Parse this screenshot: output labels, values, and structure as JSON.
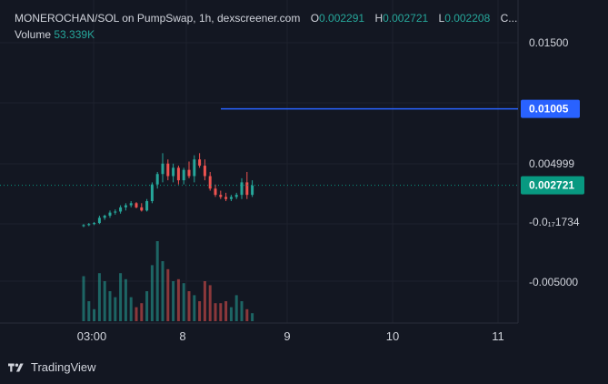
{
  "legend": {
    "symbol": "MONEROCHAN/SOL on PumpSwap, 1h, dexscreener.com",
    "o_label": "O",
    "o_value": "0.002291",
    "h_label": "H",
    "h_value": "0.002721",
    "l_label": "L",
    "l_value": "0.002208",
    "c_label": "C...",
    "volume_label": "Volume",
    "volume_value": "53.339K"
  },
  "price_axis": {
    "labels": [
      "0.01500",
      "0.004999",
      "-0.0₁₇1734",
      "-0.005000"
    ]
  },
  "time_axis": {
    "labels": [
      "03:00",
      "8",
      "9",
      "10",
      "11"
    ]
  },
  "horizontal_line": {
    "label": "0.01005",
    "color": "#2962ff"
  },
  "current_price": {
    "label": "0.002721",
    "color": "#089981"
  },
  "colors": {
    "up": "#26a69a",
    "down": "#ef5350",
    "background": "#131722"
  },
  "footer": {
    "brand": "TradingView",
    "logo_icon": "tradingview-logo-icon"
  },
  "chart_data": {
    "type": "candlestick",
    "series": [
      {
        "name": "MONEROCHAN/SOL",
        "candles": [
          {
            "o": -0.0012,
            "h": -0.001,
            "l": -0.0013,
            "c": -0.0011
          },
          {
            "o": -0.0011,
            "h": -0.0009,
            "l": -0.0012,
            "c": -0.001
          },
          {
            "o": -0.001,
            "h": -0.0008,
            "l": -0.0011,
            "c": -0.0009
          },
          {
            "o": -0.0009,
            "h": -0.0002,
            "l": -0.001,
            "c": -0.0004
          },
          {
            "o": -0.0004,
            "h": -0.0001,
            "l": -0.0006,
            "c": -0.0002
          },
          {
            "o": -0.0002,
            "h": 0.0003,
            "l": -0.0004,
            "c": 0.0001
          },
          {
            "o": 0.0001,
            "h": 0.0004,
            "l": -0.0001,
            "c": 0.0002
          },
          {
            "o": 0.0002,
            "h": 0.0008,
            "l": 0.0,
            "c": 0.0006
          },
          {
            "o": 0.0006,
            "h": 0.001,
            "l": 0.0003,
            "c": 0.0008
          },
          {
            "o": 0.0008,
            "h": 0.0012,
            "l": 0.0006,
            "c": 0.001
          },
          {
            "o": 0.001,
            "h": 0.0011,
            "l": 0.0005,
            "c": 0.0006
          },
          {
            "o": 0.0006,
            "h": 0.001,
            "l": 0.0002,
            "c": 0.0003
          },
          {
            "o": 0.0003,
            "h": 0.0014,
            "l": 0.0002,
            "c": 0.0012
          },
          {
            "o": 0.0012,
            "h": 0.003,
            "l": 0.001,
            "c": 0.0028
          },
          {
            "o": 0.0028,
            "h": 0.004,
            "l": 0.0024,
            "c": 0.0038
          },
          {
            "o": 0.0038,
            "h": 0.0058,
            "l": 0.003,
            "c": 0.0048
          },
          {
            "o": 0.0048,
            "h": 0.0052,
            "l": 0.0032,
            "c": 0.0036
          },
          {
            "o": 0.0036,
            "h": 0.0048,
            "l": 0.003,
            "c": 0.0044
          },
          {
            "o": 0.0044,
            "h": 0.0046,
            "l": 0.0028,
            "c": 0.0032
          },
          {
            "o": 0.0032,
            "h": 0.0044,
            "l": 0.0028,
            "c": 0.0042
          },
          {
            "o": 0.0042,
            "h": 0.005,
            "l": 0.0034,
            "c": 0.0036
          },
          {
            "o": 0.0036,
            "h": 0.0056,
            "l": 0.003,
            "c": 0.0052
          },
          {
            "o": 0.0052,
            "h": 0.0058,
            "l": 0.0044,
            "c": 0.0046
          },
          {
            "o": 0.0046,
            "h": 0.0052,
            "l": 0.0032,
            "c": 0.0036
          },
          {
            "o": 0.0036,
            "h": 0.004,
            "l": 0.0022,
            "c": 0.0024
          },
          {
            "o": 0.0024,
            "h": 0.0028,
            "l": 0.0016,
            "c": 0.0018
          },
          {
            "o": 0.0018,
            "h": 0.0022,
            "l": 0.0014,
            "c": 0.0016
          },
          {
            "o": 0.0016,
            "h": 0.002,
            "l": 0.0012,
            "c": 0.0014
          },
          {
            "o": 0.0014,
            "h": 0.0018,
            "l": 0.0012,
            "c": 0.0016
          },
          {
            "o": 0.0016,
            "h": 0.002,
            "l": 0.0014,
            "c": 0.0018
          },
          {
            "o": 0.0018,
            "h": 0.0034,
            "l": 0.0014,
            "c": 0.003
          },
          {
            "o": 0.003,
            "h": 0.004,
            "l": 0.0014,
            "c": 0.0018
          },
          {
            "o": 0.0018,
            "h": 0.0032,
            "l": 0.0016,
            "c": 0.0027
          }
        ],
        "volume": [
          45,
          20,
          12,
          48,
          40,
          30,
          24,
          48,
          42,
          24,
          14,
          18,
          30,
          56,
          80,
          60,
          52,
          40,
          42,
          38,
          30,
          26,
          20,
          40,
          36,
          18,
          18,
          20,
          14,
          26,
          20,
          12,
          8
        ]
      }
    ],
    "price_lines": [
      0.01005,
      0.002721
    ],
    "ylim": [
      -0.0105,
      0.0205
    ],
    "x_ticks": [
      "03:00",
      "8",
      "9",
      "10",
      "11"
    ],
    "grid": true
  }
}
